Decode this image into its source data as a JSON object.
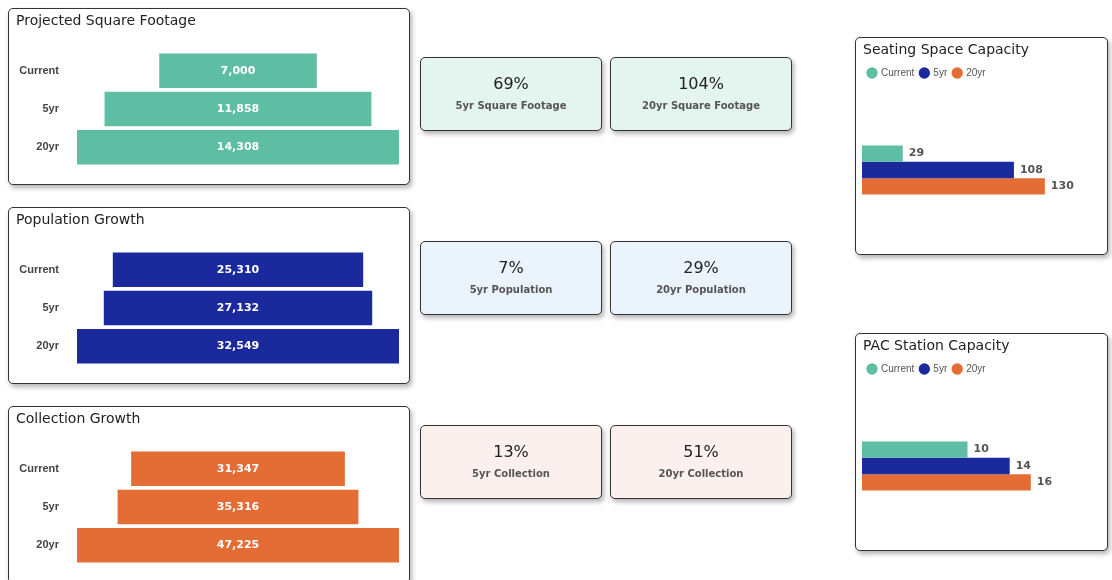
{
  "chart_data": [
    {
      "type": "other",
      "title": "Projected Square Footage",
      "categories": [
        "Current",
        "5yr",
        "20yr"
      ],
      "values": [
        7000,
        11858,
        14308
      ],
      "value_labels": [
        "7,000",
        "11,858",
        "14,308"
      ],
      "color": "#5dbea3"
    },
    {
      "type": "other",
      "annotations": [
        "69%",
        "5yr Square Footage",
        "104%",
        "20yr Square Footage"
      ],
      "color": "#e4f4ef"
    },
    {
      "type": "other",
      "title": "Population Growth",
      "categories": [
        "Current",
        "5yr",
        "20yr"
      ],
      "values": [
        25310,
        27132,
        32549
      ],
      "value_labels": [
        "25,310",
        "27,132",
        "32,549"
      ],
      "color": "#1a2a9c"
    },
    {
      "type": "other",
      "annotations": [
        "7%",
        "5yr Population",
        "29%",
        "20yr Population"
      ],
      "color": "#ebf4fc"
    },
    {
      "type": "other",
      "title": "Collection Growth",
      "categories": [
        "Current",
        "5yr",
        "20yr"
      ],
      "values": [
        31347,
        35316,
        47225
      ],
      "value_labels": [
        "31,347",
        "35,316",
        "47,225"
      ],
      "color": "#e46c35"
    },
    {
      "type": "other",
      "annotations": [
        "13%",
        "5yr Collection",
        "51%",
        "20yr Collection"
      ],
      "color": "#fbf0ed"
    },
    {
      "type": "bar",
      "title": "Seating Space Capacity",
      "orientation": "horizontal",
      "categories": [
        null
      ],
      "legend": "top left",
      "data_labels": true,
      "series": [
        {
          "name": "Current",
          "color": "#5dbea3",
          "values": [
            29
          ]
        },
        {
          "name": "5yr",
          "color": "#1a2a9c",
          "values": [
            108
          ]
        },
        {
          "name": "20yr",
          "color": "#e46c35",
          "values": [
            130
          ]
        }
      ]
    },
    {
      "type": "bar",
      "title": "PAC Station Capacity",
      "orientation": "horizontal",
      "categories": [
        null
      ],
      "legend": "top left",
      "data_labels": true,
      "series": [
        {
          "name": "Current",
          "color": "#5dbea3",
          "values": [
            10
          ]
        },
        {
          "name": "5yr",
          "color": "#1a2a9c",
          "values": [
            14
          ]
        },
        {
          "name": "20yr",
          "color": "#e46c35",
          "values": [
            16
          ]
        }
      ]
    }
  ]
}
